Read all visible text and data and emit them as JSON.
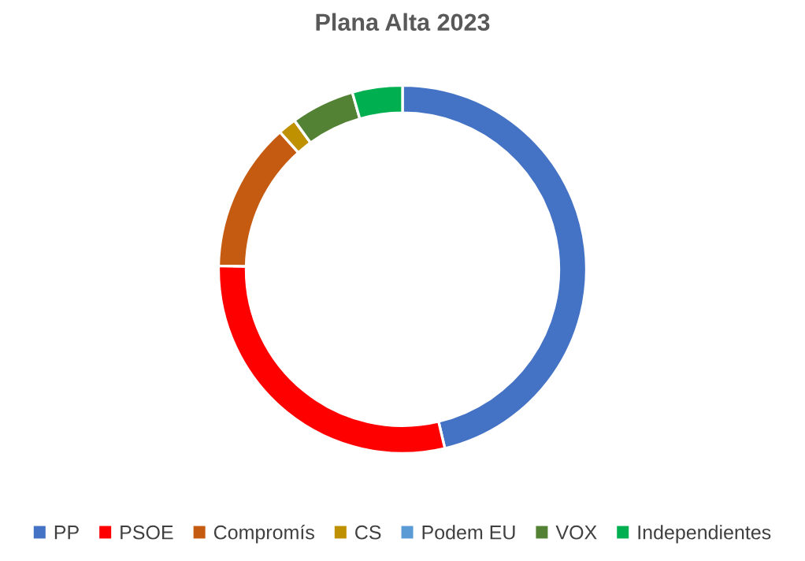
{
  "chart_data": {
    "type": "donut",
    "title": "Plana Alta 2023",
    "categories": [
      "PP",
      "PSOE",
      "Compromís",
      "CS",
      "Podem EU",
      "VOX",
      "Independientes"
    ],
    "values": [
      46.3,
      29,
      13.1,
      1.6,
      0,
      5.6,
      4.4
    ],
    "colors": [
      "#4472c4",
      "#ff0000",
      "#c55a11",
      "#bf9000",
      "#5b9bd5",
      "#548235",
      "#00b050"
    ],
    "legend": "bottom"
  }
}
